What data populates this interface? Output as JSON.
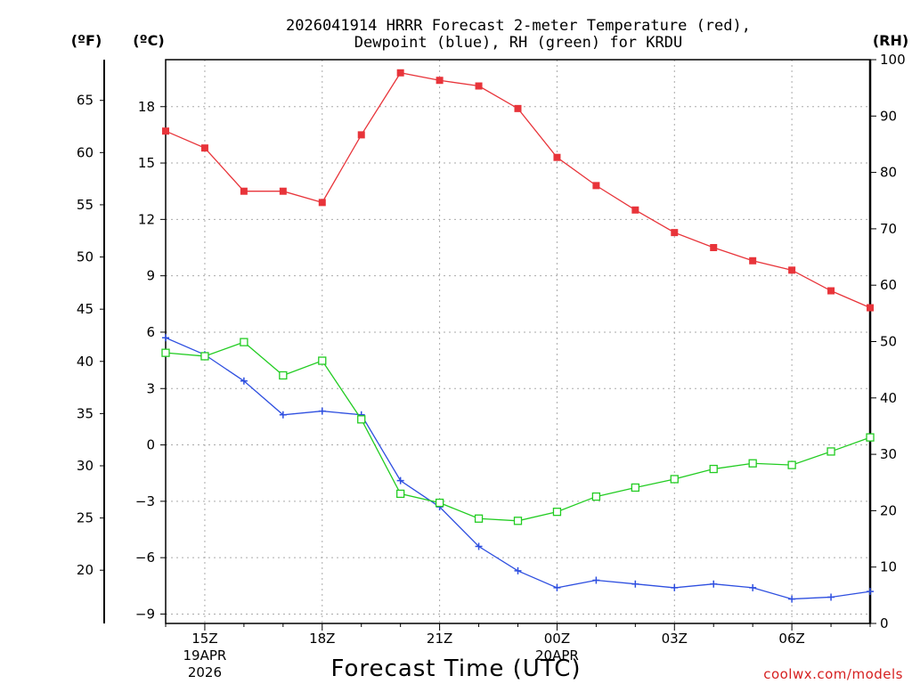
{
  "chart_data": {
    "type": "line",
    "title_line1": "2026041914 HRRR Forecast 2-meter Temperature (red),",
    "title_line2": "Dewpoint (blue), RH (green) for KRDU",
    "xlabel": "Forecast Time (UTC)",
    "credit": "coolwx.com/models",
    "units": {
      "fahrenheit": "(ºF)",
      "celsius": "(ºC)",
      "rh": "(RH)"
    },
    "x_hours": [
      14,
      15,
      16,
      17,
      18,
      19,
      20,
      21,
      22,
      23,
      24,
      25,
      26,
      27,
      28,
      29,
      30,
      31,
      32
    ],
    "xlim": [
      14,
      32
    ],
    "x_ticks": [
      {
        "hour": 15,
        "label": "15Z",
        "sub1": "19APR",
        "sub2": "2026"
      },
      {
        "hour": 18,
        "label": "18Z",
        "sub1": "",
        "sub2": ""
      },
      {
        "hour": 21,
        "label": "21Z",
        "sub1": "",
        "sub2": ""
      },
      {
        "hour": 24,
        "label": "00Z",
        "sub1": "20APR",
        "sub2": ""
      },
      {
        "hour": 27,
        "label": "03Z",
        "sub1": "",
        "sub2": ""
      },
      {
        "hour": 30,
        "label": "06Z",
        "sub1": "",
        "sub2": ""
      }
    ],
    "celsius_axis": {
      "min": -9.5,
      "max": 20.5,
      "ticks": [
        -9,
        -6,
        -3,
        0,
        3,
        6,
        9,
        12,
        15,
        18
      ]
    },
    "fahrenheit_ticks": [
      20,
      25,
      30,
      35,
      40,
      45,
      50,
      55,
      60,
      65
    ],
    "rh_axis": {
      "min": 0,
      "max": 100,
      "ticks": [
        0,
        10,
        20,
        30,
        40,
        50,
        60,
        70,
        80,
        90,
        100
      ]
    },
    "series": [
      {
        "name": "Temperature",
        "axis": "celsius",
        "color": "#e8343a",
        "marker": "filled-square",
        "values": [
          16.7,
          15.8,
          13.5,
          13.5,
          12.9,
          16.5,
          19.8,
          19.4,
          19.1,
          17.9,
          15.3,
          13.8,
          12.5,
          11.3,
          10.5,
          9.8,
          9.3,
          8.2,
          7.3
        ]
      },
      {
        "name": "Dewpoint",
        "axis": "celsius",
        "color": "#2e4fe0",
        "marker": "plus",
        "values": [
          5.7,
          4.8,
          3.4,
          1.6,
          1.8,
          1.6,
          -1.9,
          -3.3,
          -5.4,
          -6.7,
          -7.6,
          -7.2,
          -7.4,
          -7.6,
          -7.4,
          -7.6,
          -8.2,
          -8.1,
          -7.8
        ]
      },
      {
        "name": "RH",
        "axis": "rh",
        "color": "#22cc22",
        "marker": "open-square",
        "values": [
          48,
          47.4,
          49.9,
          44,
          46.6,
          36.2,
          23,
          21.4,
          18.6,
          18.2,
          19.8,
          22.5,
          24.1,
          25.6,
          27.4,
          28.4,
          28.1,
          30.5,
          33
        ]
      }
    ]
  }
}
